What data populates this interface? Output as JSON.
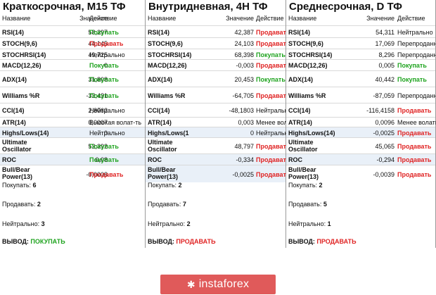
{
  "headers": {
    "name": "Название",
    "value": "Значение",
    "action": "Действие"
  },
  "panels": [
    {
      "title": "Краткосрочная, M15 ТФ",
      "rows": [
        {
          "name": "RSI(14)",
          "value": "58,297",
          "action": "Покупать",
          "kind": "buy"
        },
        {
          "name": "STOCH(9,6)",
          "value": "44,145",
          "action": "Продавать",
          "kind": "sell"
        },
        {
          "name": "STOCHRSI(14)",
          "value": "49,725",
          "action": "Нейтрально",
          "kind": "neutral"
        },
        {
          "name": "MACD(12,26)",
          "value": "0",
          "action": "Покупать",
          "kind": "buy"
        },
        {
          "name": "ADX(14)",
          "value": "31,808",
          "action": "Покупать",
          "kind": "buy"
        },
        {
          "name": "Williams %R",
          "value": "-32,431",
          "action": "Покупать",
          "kind": "buy"
        },
        {
          "name": "CCI(14)",
          "value": "2,8062",
          "action": "Нейтрально",
          "kind": "neutral"
        },
        {
          "name": "ATR(14)",
          "value": "0,0007",
          "action": "Высокая волат-ть",
          "kind": "neutral"
        },
        {
          "name": "Highs/Lows(14)",
          "value": "0",
          "action": "Нейтрально",
          "kind": "neutral"
        },
        {
          "name": "Ultimate Oscillator",
          "value": "52,392",
          "action": "Покупать",
          "kind": "buy"
        },
        {
          "name": "ROC",
          "value": "0,08",
          "action": "Покупать",
          "kind": "buy"
        },
        {
          "name": "Bull/Bear Power(13)",
          "value": "-0,0008",
          "action": "Продавать",
          "kind": "sell"
        }
      ],
      "summary": {
        "buy_label": "Покупать:",
        "buy_count": "6",
        "sell_label": "Продавать:",
        "sell_count": "2",
        "neutral_label": "Нейтрально:",
        "neutral_count": "3",
        "verdict_label": "ВЫВОД:",
        "verdict": "ПОКУПАТЬ",
        "verdict_kind": "buy"
      }
    },
    {
      "title": "Внутридневная, 4H ТФ",
      "rows": [
        {
          "name": "RSI(14)",
          "value": "42,387",
          "action": "Продавать",
          "kind": "sell"
        },
        {
          "name": "STOCH(9,6)",
          "value": "24,103",
          "action": "Продавать",
          "kind": "sell"
        },
        {
          "name": "STOCHRSI(14)",
          "value": "68,398",
          "action": "Покупать",
          "kind": "buy"
        },
        {
          "name": "MACD(12,26)",
          "value": "-0,003",
          "action": "Продавать",
          "kind": "sell"
        },
        {
          "name": "ADX(14)",
          "value": "20,453",
          "action": "Покупать",
          "kind": "buy"
        },
        {
          "name": "Williams %R",
          "value": "-64,705",
          "action": "Продавать",
          "kind": "sell"
        },
        {
          "name": "CCI(14)",
          "value": "-48,1803",
          "action": "Нейтрально",
          "kind": "neutral"
        },
        {
          "name": "ATR(14)",
          "value": "0,003",
          "action": "Менее волатилен",
          "kind": "neutral"
        },
        {
          "name": "Highs/Lows(1",
          "value": "0",
          "action": "Нейтрально",
          "kind": "neutral"
        },
        {
          "name": "Ultimate Oscillator",
          "value": "48,797",
          "action": "Продавать",
          "kind": "sell"
        },
        {
          "name": "ROC",
          "value": "-0,334",
          "action": "Продавать",
          "kind": "sell"
        },
        {
          "name": "Bull/Bear Power(13)",
          "value": "-0,0025",
          "action": "Продавать",
          "kind": "sell"
        }
      ],
      "summary": {
        "buy_label": "Покупать:",
        "buy_count": "2",
        "sell_label": "Продавать:",
        "sell_count": "7",
        "neutral_label": "Нейтрально:",
        "neutral_count": "2",
        "verdict_label": "ВЫВОД:",
        "verdict": "ПРОДАВАТЬ",
        "verdict_kind": "sell"
      }
    },
    {
      "title": "Среднесрочная, D ТФ",
      "rows": [
        {
          "name": "RSI(14)",
          "value": "54,311",
          "action": "Нейтрально",
          "kind": "neutral"
        },
        {
          "name": "STOCH(9,6)",
          "value": "17,069",
          "action": "Перепроданность",
          "kind": "neutral"
        },
        {
          "name": "STOCHRSI(14)",
          "value": "8,296",
          "action": "Перепроданность",
          "kind": "neutral"
        },
        {
          "name": "MACD(12,26)",
          "value": "0,005",
          "action": "Покупать",
          "kind": "buy"
        },
        {
          "name": "ADX(14)",
          "value": "40,442",
          "action": "Покупать",
          "kind": "buy"
        },
        {
          "name": "Williams %R",
          "value": "-87,059",
          "action": "Перепроданность",
          "kind": "neutral"
        },
        {
          "name": "CCI(14)",
          "value": "-116,4158",
          "action": "Продавать",
          "kind": "sell"
        },
        {
          "name": "ATR(14)",
          "value": "0,0096",
          "action": "Менее волатилен",
          "kind": "neutral"
        },
        {
          "name": "Highs/Lows(14)",
          "value": "-0,0025",
          "action": "Продавать",
          "kind": "sell"
        },
        {
          "name": "Ultimate Oscillator",
          "value": "45,065",
          "action": "Продавать",
          "kind": "sell"
        },
        {
          "name": "ROC",
          "value": "-0,294",
          "action": "Продавать",
          "kind": "sell"
        },
        {
          "name": "Bull/Bear Power(13)",
          "value": "-0,0039",
          "action": "Продавать",
          "kind": "sell"
        }
      ],
      "summary": {
        "buy_label": "Покупать:",
        "buy_count": "2",
        "sell_label": "Продавать:",
        "sell_count": "5",
        "neutral_label": "Нейтрально:",
        "neutral_count": "1",
        "verdict_label": "ВЫВОД:",
        "verdict": "ПРОДАВАТЬ",
        "verdict_kind": "sell"
      }
    }
  ],
  "footer": {
    "logo_text": "instaforex",
    "logo_icon": "instaforex-logo-icon",
    "logo_color": "#e05a5a"
  },
  "colors": {
    "buy": "#1fa31f",
    "sell": "#e02424"
  }
}
